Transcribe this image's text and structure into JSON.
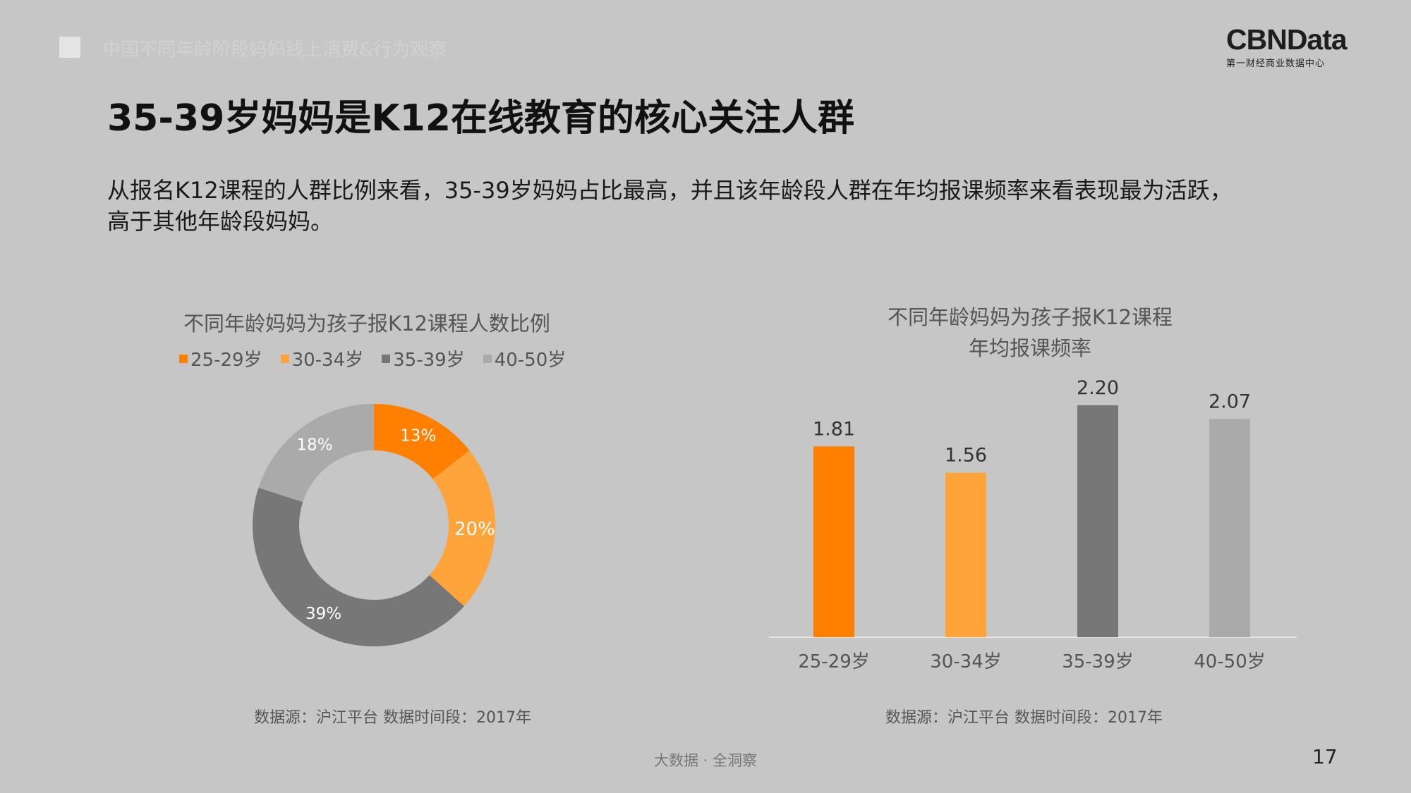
{
  "header": {
    "section_title": "中国不同年龄阶段妈妈线上消费&行为观察",
    "logo_main": "CBNData",
    "logo_sub": "第一财经商业数据中心"
  },
  "title": "35-39岁妈妈是K12在线教育的核心关注人群",
  "description_line1": "从报名K12课程的人群比例来看，35-39岁妈妈占比最高，并且该年龄段人群在年均报课频率来看表现最为活跃，",
  "description_line2": "高于其他年龄段妈妈。",
  "colors": {
    "c25_29": "#ff7f00",
    "c30_34": "#ffa43b",
    "c35_39": "#777777",
    "c40_50": "#aaaaaa"
  },
  "chart_data": [
    {
      "type": "pie",
      "title": "不同年龄妈妈为孩子报K12课程人数比例",
      "legend_position": "top",
      "categories": [
        "25-29岁",
        "30-34岁",
        "35-39岁",
        "40-50岁"
      ],
      "values": [
        13,
        20,
        39,
        18
      ],
      "labels": [
        "13%",
        "20%",
        "39%",
        "18%"
      ]
    },
    {
      "type": "bar",
      "title_line1": "不同年龄妈妈为孩子报K12课程",
      "title_line2": "年均报课频率",
      "categories": [
        "25-29岁",
        "30-34岁",
        "35-39岁",
        "40-50岁"
      ],
      "values": [
        1.81,
        1.56,
        2.2,
        2.07
      ],
      "labels": [
        "1.81",
        "1.56",
        "2.20",
        "2.07"
      ],
      "ylim": [
        0,
        2.3
      ]
    }
  ],
  "source_left": "数据源：沪江平台    数据时间段：2017年",
  "source_right": "数据源：沪江平台    数据时间段：2017年",
  "footer": "大数据 · 全洞察",
  "page_number": "17"
}
